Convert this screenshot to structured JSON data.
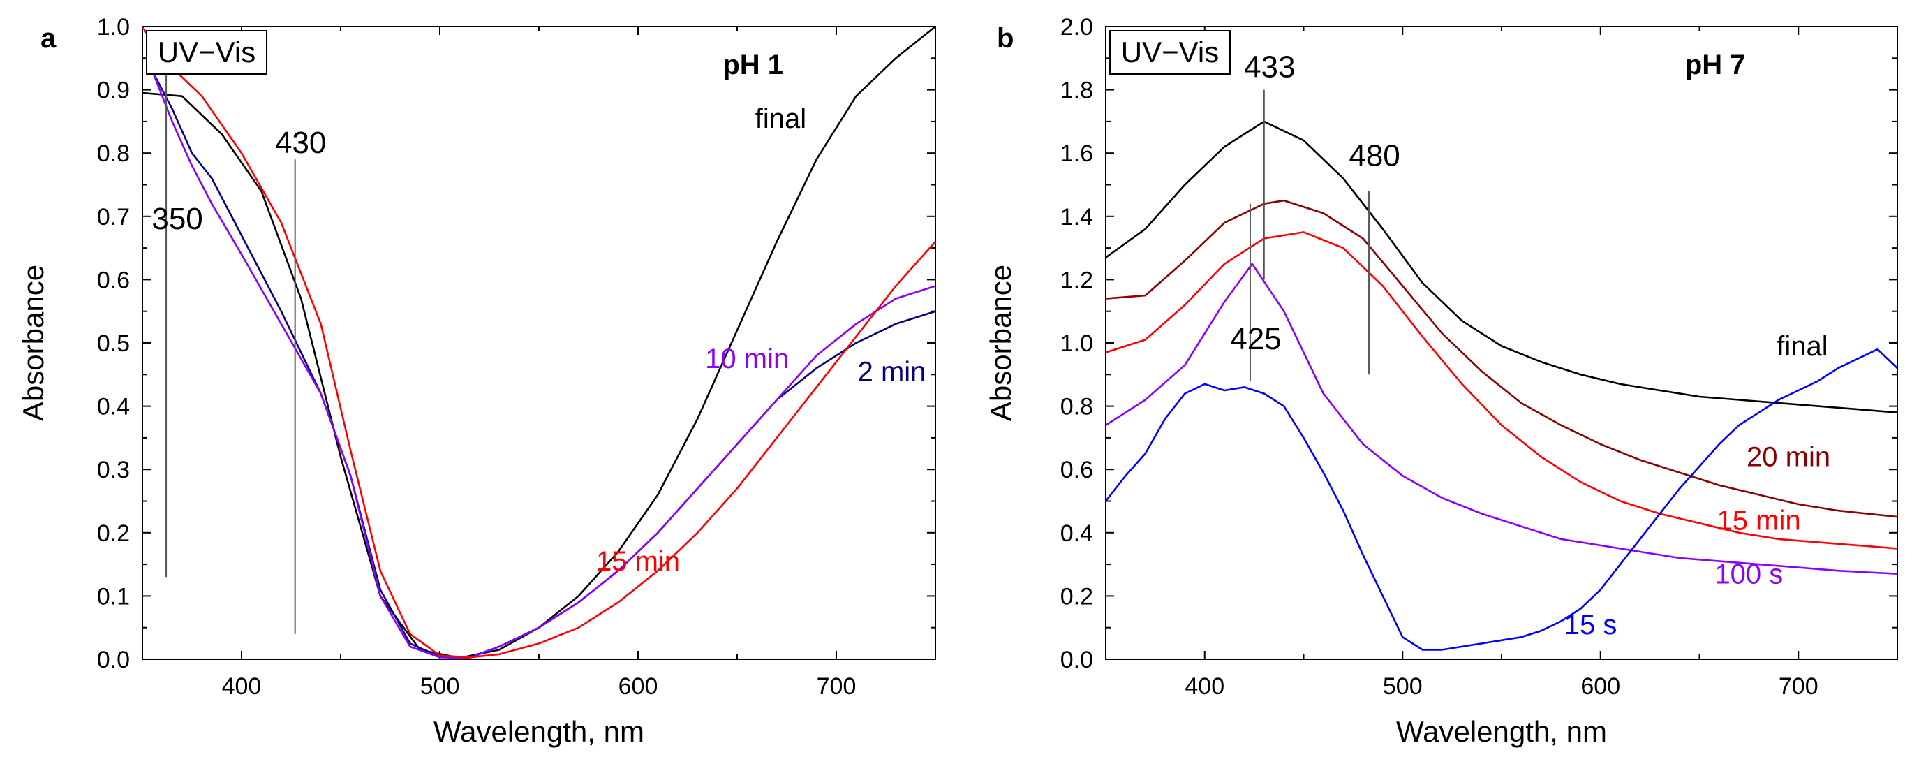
{
  "chart_data": [
    {
      "type": "line",
      "panel_label": "a",
      "condition": "pH 1",
      "legend_box": "UV−Vis",
      "xlabel": "Wavelength, nm",
      "ylabel": "Absorbance",
      "xlim": [
        350,
        750
      ],
      "ylim": [
        0.0,
        1.0
      ],
      "xticks": [
        400,
        500,
        600,
        700
      ],
      "yticks": [
        0.0,
        0.1,
        0.2,
        0.3,
        0.4,
        0.5,
        0.6,
        0.7,
        0.8,
        0.9,
        1.0
      ],
      "ytick_labels": [
        "0.0",
        "0.1",
        "0.2",
        "0.3",
        "0.4",
        "0.5",
        "0.6",
        "0.7",
        "0.8",
        "0.9",
        "1.0"
      ],
      "annotations": [
        {
          "text": "350",
          "x": 362,
          "y_from": 0.13,
          "y_to": 0.95,
          "text_y": 0.68
        },
        {
          "text": "430",
          "x": 427,
          "y_from": 0.04,
          "y_to": 0.79,
          "text_y": 0.8
        }
      ],
      "series": [
        {
          "name": "final",
          "color": "#000000",
          "label_at": [
            672,
            0.84
          ],
          "x": [
            350,
            370,
            390,
            410,
            430,
            450,
            470,
            490,
            510,
            530,
            550,
            570,
            590,
            610,
            630,
            650,
            670,
            690,
            710,
            730,
            750
          ],
          "y": [
            0.895,
            0.89,
            0.83,
            0.74,
            0.57,
            0.32,
            0.1,
            0.015,
            0.002,
            0.015,
            0.05,
            0.1,
            0.17,
            0.26,
            0.38,
            0.52,
            0.66,
            0.79,
            0.89,
            0.95,
            1.0
          ]
        },
        {
          "name": "2 min",
          "color": "#000080",
          "label_at": [
            728,
            0.44
          ],
          "x": [
            355,
            365,
            375,
            385,
            400,
            420,
            440,
            455,
            470,
            485,
            500,
            515,
            530,
            550,
            570,
            590,
            610,
            630,
            650,
            670,
            690,
            710,
            730,
            750
          ],
          "y": [
            0.93,
            0.87,
            0.8,
            0.76,
            0.67,
            0.55,
            0.42,
            0.29,
            0.11,
            0.025,
            0.004,
            0.003,
            0.02,
            0.05,
            0.09,
            0.14,
            0.2,
            0.27,
            0.34,
            0.41,
            0.46,
            0.5,
            0.53,
            0.55
          ]
        },
        {
          "name": "10 min",
          "color": "#8b00ff",
          "label_at": [
            655,
            0.46
          ],
          "x": [
            355,
            365,
            375,
            385,
            400,
            420,
            440,
            455,
            470,
            485,
            500,
            515,
            530,
            550,
            570,
            590,
            610,
            630,
            650,
            670,
            690,
            710,
            730,
            750
          ],
          "y": [
            0.93,
            0.85,
            0.78,
            0.72,
            0.64,
            0.53,
            0.42,
            0.29,
            0.1,
            0.02,
            0.003,
            0.002,
            0.02,
            0.05,
            0.09,
            0.14,
            0.2,
            0.27,
            0.34,
            0.41,
            0.48,
            0.53,
            0.57,
            0.59
          ]
        },
        {
          "name": "15 min",
          "color": "#ff0000",
          "label_at": [
            600,
            0.14
          ],
          "x": [
            350,
            360,
            380,
            400,
            420,
            440,
            455,
            470,
            485,
            500,
            515,
            530,
            550,
            570,
            590,
            610,
            630,
            650,
            670,
            690,
            710,
            730,
            750
          ],
          "y": [
            1.0,
            0.95,
            0.89,
            0.8,
            0.69,
            0.53,
            0.33,
            0.14,
            0.04,
            0.006,
            0.003,
            0.008,
            0.025,
            0.05,
            0.09,
            0.14,
            0.2,
            0.27,
            0.35,
            0.43,
            0.51,
            0.59,
            0.66
          ]
        }
      ]
    },
    {
      "type": "line",
      "panel_label": "b",
      "condition": "pH 7",
      "legend_box": "UV−Vis",
      "xlabel": "Wavelength, nm",
      "ylabel": "Absorbance",
      "xlim": [
        350,
        750
      ],
      "ylim": [
        0.0,
        2.0
      ],
      "xticks": [
        400,
        500,
        600,
        700
      ],
      "yticks": [
        0.0,
        0.2,
        0.4,
        0.6,
        0.8,
        1.0,
        1.2,
        1.4,
        1.6,
        1.8,
        2.0
      ],
      "ytick_labels": [
        "0.0",
        "0.2",
        "0.4",
        "0.6",
        "0.8",
        "1.0",
        "1.2",
        "1.4",
        "1.6",
        "1.8",
        "2.0"
      ],
      "annotations": [
        {
          "text": "433",
          "x": 430,
          "y_from": 1.2,
          "y_to": 1.8,
          "text_y": 1.84
        },
        {
          "text": "480",
          "x": 483,
          "y_from": 0.9,
          "y_to": 1.48,
          "text_y": 1.56
        },
        {
          "text": "425",
          "x": 423,
          "y_from": 0.88,
          "y_to": 1.44,
          "text_y": 0.98
        }
      ],
      "series": [
        {
          "name": "final",
          "color": "#000000",
          "label_at": [
            702,
            0.96
          ],
          "x": [
            350,
            370,
            390,
            410,
            430,
            450,
            470,
            490,
            510,
            530,
            550,
            570,
            590,
            610,
            630,
            650,
            670,
            690,
            710,
            730,
            750
          ],
          "y": [
            1.27,
            1.36,
            1.5,
            1.62,
            1.7,
            1.64,
            1.52,
            1.36,
            1.19,
            1.07,
            0.99,
            0.94,
            0.9,
            0.87,
            0.85,
            0.83,
            0.82,
            0.81,
            0.8,
            0.79,
            0.78
          ]
        },
        {
          "name": "20 min",
          "color": "#8b0000",
          "label_at": [
            695,
            0.61
          ],
          "x": [
            350,
            370,
            390,
            410,
            430,
            440,
            460,
            480,
            500,
            520,
            540,
            560,
            580,
            600,
            620,
            640,
            660,
            680,
            700,
            720,
            750
          ],
          "y": [
            1.14,
            1.15,
            1.26,
            1.38,
            1.44,
            1.45,
            1.41,
            1.33,
            1.18,
            1.03,
            0.91,
            0.81,
            0.74,
            0.68,
            0.63,
            0.59,
            0.55,
            0.52,
            0.49,
            0.47,
            0.45
          ]
        },
        {
          "name": "15 min",
          "color": "#ff0000",
          "label_at": [
            680,
            0.41
          ],
          "x": [
            350,
            370,
            390,
            410,
            430,
            450,
            470,
            490,
            510,
            530,
            550,
            570,
            590,
            610,
            630,
            650,
            670,
            690,
            710,
            730,
            750
          ],
          "y": [
            0.97,
            1.01,
            1.12,
            1.25,
            1.33,
            1.35,
            1.3,
            1.18,
            1.02,
            0.87,
            0.74,
            0.64,
            0.56,
            0.5,
            0.46,
            0.43,
            0.4,
            0.38,
            0.37,
            0.36,
            0.35
          ]
        },
        {
          "name": "100 s",
          "color": "#8b00ff",
          "label_at": [
            675,
            0.24
          ],
          "x": [
            350,
            370,
            390,
            410,
            424,
            440,
            460,
            480,
            500,
            520,
            540,
            560,
            580,
            600,
            620,
            640,
            660,
            680,
            700,
            720,
            750
          ],
          "y": [
            0.74,
            0.82,
            0.93,
            1.13,
            1.25,
            1.1,
            0.84,
            0.68,
            0.58,
            0.51,
            0.46,
            0.42,
            0.38,
            0.36,
            0.34,
            0.32,
            0.31,
            0.3,
            0.29,
            0.28,
            0.27
          ]
        },
        {
          "name": "15 s",
          "color": "#0000ff",
          "label_at": [
            595,
            0.08
          ],
          "x": [
            350,
            360,
            370,
            380,
            390,
            400,
            410,
            420,
            430,
            440,
            450,
            460,
            470,
            480,
            490,
            500,
            510,
            520,
            530,
            540,
            550,
            560,
            570,
            580,
            590,
            600,
            610,
            620,
            630,
            640,
            650,
            660,
            670,
            680,
            690,
            700,
            710,
            720,
            730,
            740,
            750
          ],
          "y": [
            0.5,
            0.58,
            0.65,
            0.76,
            0.84,
            0.87,
            0.85,
            0.86,
            0.84,
            0.8,
            0.7,
            0.59,
            0.47,
            0.33,
            0.2,
            0.07,
            0.03,
            0.03,
            0.04,
            0.05,
            0.06,
            0.07,
            0.09,
            0.12,
            0.16,
            0.22,
            0.3,
            0.38,
            0.46,
            0.54,
            0.61,
            0.68,
            0.74,
            0.78,
            0.82,
            0.85,
            0.88,
            0.92,
            0.95,
            0.98,
            0.92
          ]
        }
      ]
    }
  ]
}
